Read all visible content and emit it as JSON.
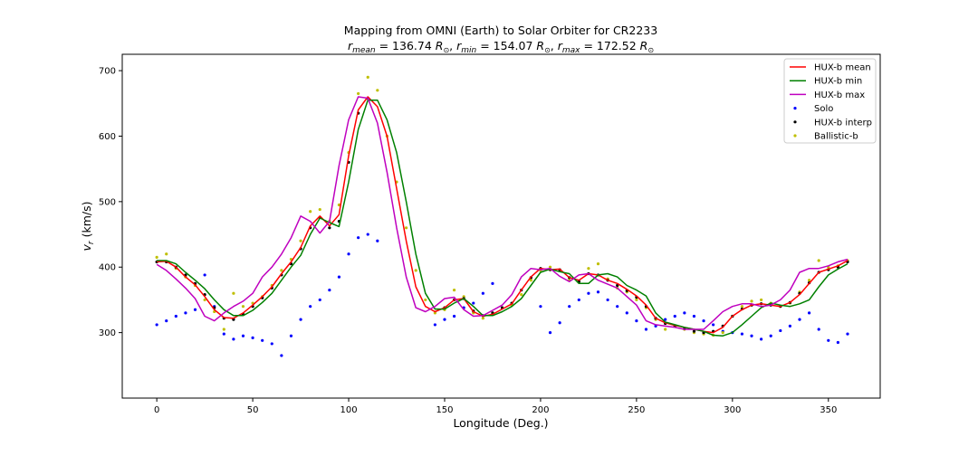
{
  "chart_data": {
    "type": "line",
    "title": "Mapping from OMNI (Earth) to Solar Orbiter for CR2233",
    "subtitle": {
      "r_mean": "136.74",
      "r_min": "154.07",
      "r_max": "172.52"
    },
    "xlabel": "Longitude (Deg.)",
    "ylabel": {
      "main": "v",
      "sub": "r",
      "unit": " (km/s)"
    },
    "xlim": [
      -18,
      377
    ],
    "ylim": [
      200,
      725
    ],
    "xticks": [
      0,
      50,
      100,
      150,
      200,
      250,
      300,
      350
    ],
    "yticks": [
      300,
      400,
      500,
      600,
      700
    ],
    "grid": false,
    "legend_position": "upper right",
    "legend": [
      {
        "label": "HUX-b mean",
        "kind": "line",
        "color": "#ff0000"
      },
      {
        "label": "HUX-b min",
        "kind": "line",
        "color": "#008000"
      },
      {
        "label": "HUX-b max",
        "kind": "line",
        "color": "#bf00bf"
      },
      {
        "label": "Solo",
        "kind": "point",
        "color": "#0000ff"
      },
      {
        "label": "HUX-b interp",
        "kind": "point",
        "color": "#000000"
      },
      {
        "label": "Ballistic-b",
        "kind": "point",
        "color": "#bfbf00"
      }
    ],
    "series": [
      {
        "name": "HUX-b mean",
        "kind": "line",
        "color": "#ff0000",
        "x": [
          0,
          5,
          10,
          15,
          20,
          25,
          30,
          35,
          40,
          45,
          50,
          55,
          60,
          65,
          70,
          75,
          80,
          85,
          90,
          95,
          100,
          105,
          110,
          115,
          120,
          125,
          130,
          135,
          140,
          145,
          150,
          155,
          160,
          165,
          170,
          175,
          180,
          185,
          190,
          195,
          200,
          205,
          210,
          215,
          220,
          225,
          230,
          235,
          240,
          245,
          250,
          255,
          260,
          265,
          270,
          275,
          280,
          285,
          290,
          295,
          300,
          305,
          310,
          315,
          320,
          325,
          330,
          335,
          340,
          345,
          350,
          355,
          360
        ],
        "y": [
          408,
          409,
          400,
          385,
          373,
          355,
          335,
          323,
          322,
          330,
          342,
          355,
          370,
          390,
          408,
          430,
          463,
          478,
          463,
          480,
          570,
          640,
          660,
          645,
          600,
          520,
          440,
          370,
          340,
          332,
          338,
          350,
          352,
          332,
          325,
          328,
          336,
          344,
          365,
          385,
          398,
          396,
          397,
          384,
          380,
          390,
          388,
          380,
          375,
          366,
          356,
          342,
          322,
          315,
          311,
          308,
          305,
          302,
          300,
          308,
          325,
          335,
          342,
          344,
          342,
          340,
          346,
          358,
          375,
          392,
          397,
          402,
          410
        ]
      },
      {
        "name": "HUX-b min",
        "kind": "line",
        "color": "#008000",
        "x": [
          0,
          5,
          10,
          15,
          20,
          25,
          30,
          35,
          40,
          45,
          50,
          55,
          60,
          65,
          70,
          75,
          80,
          85,
          90,
          95,
          100,
          105,
          110,
          115,
          120,
          125,
          130,
          135,
          140,
          145,
          150,
          155,
          160,
          165,
          170,
          175,
          180,
          185,
          190,
          195,
          200,
          205,
          210,
          215,
          220,
          225,
          230,
          235,
          240,
          245,
          250,
          255,
          260,
          265,
          270,
          275,
          280,
          285,
          290,
          295,
          300,
          305,
          310,
          315,
          320,
          325,
          330,
          335,
          340,
          345,
          350,
          355,
          360
        ],
        "y": [
          410,
          410,
          405,
          392,
          380,
          367,
          350,
          335,
          326,
          326,
          334,
          346,
          360,
          380,
          400,
          418,
          450,
          475,
          468,
          462,
          530,
          610,
          655,
          655,
          625,
          575,
          500,
          420,
          360,
          336,
          336,
          345,
          352,
          340,
          326,
          326,
          332,
          340,
          352,
          372,
          392,
          397,
          393,
          390,
          375,
          375,
          388,
          390,
          385,
          372,
          365,
          356,
          330,
          316,
          312,
          308,
          305,
          302,
          296,
          295,
          300,
          312,
          325,
          338,
          345,
          342,
          340,
          344,
          350,
          370,
          388,
          397,
          405
        ]
      },
      {
        "name": "HUX-b max",
        "kind": "line",
        "color": "#bf00bf",
        "x": [
          0,
          5,
          10,
          15,
          20,
          25,
          30,
          35,
          40,
          45,
          50,
          55,
          60,
          65,
          70,
          75,
          80,
          85,
          90,
          95,
          100,
          105,
          110,
          115,
          120,
          125,
          130,
          135,
          140,
          145,
          150,
          155,
          160,
          165,
          170,
          175,
          180,
          185,
          190,
          195,
          200,
          205,
          210,
          215,
          220,
          225,
          230,
          235,
          240,
          245,
          250,
          255,
          260,
          265,
          270,
          275,
          280,
          285,
          290,
          295,
          300,
          305,
          310,
          315,
          320,
          325,
          330,
          335,
          340,
          345,
          350,
          355,
          360
        ],
        "y": [
          404,
          395,
          382,
          368,
          352,
          325,
          318,
          330,
          340,
          348,
          360,
          385,
          400,
          420,
          445,
          478,
          470,
          452,
          470,
          555,
          625,
          660,
          658,
          620,
          545,
          460,
          385,
          338,
          332,
          340,
          352,
          354,
          335,
          325,
          326,
          334,
          342,
          358,
          385,
          398,
          396,
          398,
          386,
          378,
          388,
          390,
          380,
          374,
          368,
          355,
          342,
          318,
          312,
          310,
          308,
          305,
          305,
          305,
          318,
          332,
          340,
          344,
          344,
          340,
          342,
          350,
          365,
          392,
          398,
          398,
          402,
          408,
          412
        ]
      },
      {
        "name": "Solo",
        "kind": "point",
        "color": "#0000ff",
        "x": [
          0,
          5,
          10,
          15,
          20,
          25,
          30,
          35,
          40,
          45,
          50,
          55,
          60,
          65,
          70,
          75,
          80,
          85,
          90,
          95,
          100,
          105,
          110,
          115,
          120,
          125,
          130,
          135,
          140,
          145,
          150,
          155,
          160,
          165,
          170,
          175,
          180,
          185,
          190,
          195,
          200,
          205,
          210,
          215,
          220,
          225,
          230,
          235,
          240,
          245,
          250,
          255,
          260,
          265,
          270,
          275,
          280,
          285,
          290,
          295,
          300,
          305,
          310,
          315,
          320,
          325,
          330,
          335,
          340,
          345,
          350,
          355,
          360
        ],
        "y": [
          312,
          318,
          325,
          330,
          335,
          388,
          340,
          298,
          290,
          295,
          292,
          288,
          283,
          265,
          295,
          320,
          340,
          350,
          365,
          385,
          420,
          445,
          450,
          440,
          null,
          null,
          null,
          null,
          null,
          312,
          320,
          325,
          338,
          345,
          360,
          375,
          null,
          null,
          null,
          null,
          340,
          300,
          315,
          340,
          350,
          360,
          362,
          350,
          340,
          330,
          318,
          305,
          310,
          320,
          325,
          330,
          325,
          318,
          312,
          302,
          300,
          298,
          295,
          290,
          295,
          303,
          310,
          320,
          330,
          305,
          288,
          285,
          298
        ]
      },
      {
        "name": "HUX-b interp",
        "kind": "point",
        "color": "#000000",
        "x": [
          0,
          5,
          10,
          15,
          20,
          25,
          30,
          35,
          40,
          45,
          50,
          55,
          60,
          65,
          70,
          75,
          80,
          85,
          90,
          95,
          100,
          105,
          110,
          115,
          120,
          125,
          130,
          135,
          140,
          145,
          150,
          155,
          160,
          165,
          170,
          175,
          180,
          185,
          190,
          195,
          200,
          205,
          210,
          215,
          220,
          225,
          230,
          235,
          240,
          245,
          250,
          255,
          260,
          265,
          270,
          275,
          280,
          285,
          290,
          295,
          300,
          305,
          310,
          315,
          320,
          325,
          330,
          335,
          340,
          345,
          350,
          355,
          360
        ],
        "y": [
          408,
          408,
          400,
          388,
          375,
          358,
          338,
          322,
          320,
          328,
          340,
          353,
          368,
          388,
          405,
          428,
          460,
          476,
          460,
          470,
          560,
          635,
          658,
          null,
          null,
          null,
          null,
          null,
          null,
          null,
          338,
          350,
          352,
          333,
          326,
          330,
          338,
          345,
          365,
          384,
          398,
          396,
          396,
          384,
          378,
          390,
          388,
          380,
          372,
          364,
          354,
          340,
          322,
          314,
          310,
          306,
          302,
          300,
          302,
          310,
          325,
          336,
          342,
          344,
          342,
          340,
          346,
          360,
          376,
          392,
          396,
          400,
          408
        ]
      },
      {
        "name": "Ballistic-b",
        "kind": "point",
        "color": "#bfbf00",
        "x": [
          0,
          5,
          10,
          15,
          20,
          25,
          30,
          35,
          40,
          45,
          50,
          55,
          60,
          65,
          70,
          75,
          80,
          85,
          90,
          95,
          100,
          105,
          110,
          115,
          120,
          125,
          130,
          135,
          140,
          145,
          150,
          155,
          160,
          165,
          170,
          175,
          180,
          185,
          190,
          195,
          200,
          205,
          210,
          215,
          220,
          225,
          230,
          235,
          240,
          245,
          250,
          255,
          260,
          265,
          270,
          275,
          280,
          285,
          290,
          295,
          300,
          305,
          310,
          315,
          320,
          325,
          330,
          335,
          340,
          345,
          350,
          355,
          360
        ],
        "y": [
          415,
          420,
          398,
          385,
          372,
          350,
          332,
          305,
          360,
          340,
          345,
          355,
          372,
          395,
          412,
          440,
          485,
          488,
          470,
          495,
          575,
          665,
          690,
          670,
          600,
          530,
          460,
          395,
          350,
          330,
          335,
          365,
          355,
          330,
          322,
          330,
          338,
          342,
          358,
          380,
          395,
          400,
          395,
          380,
          378,
          398,
          405,
          382,
          368,
          362,
          350,
          338,
          320,
          305,
          310,
          305,
          300,
          298,
          296,
          300,
          325,
          340,
          348,
          350,
          345,
          340,
          345,
          362,
          380,
          410,
          400,
          402,
          410
        ]
      }
    ]
  }
}
